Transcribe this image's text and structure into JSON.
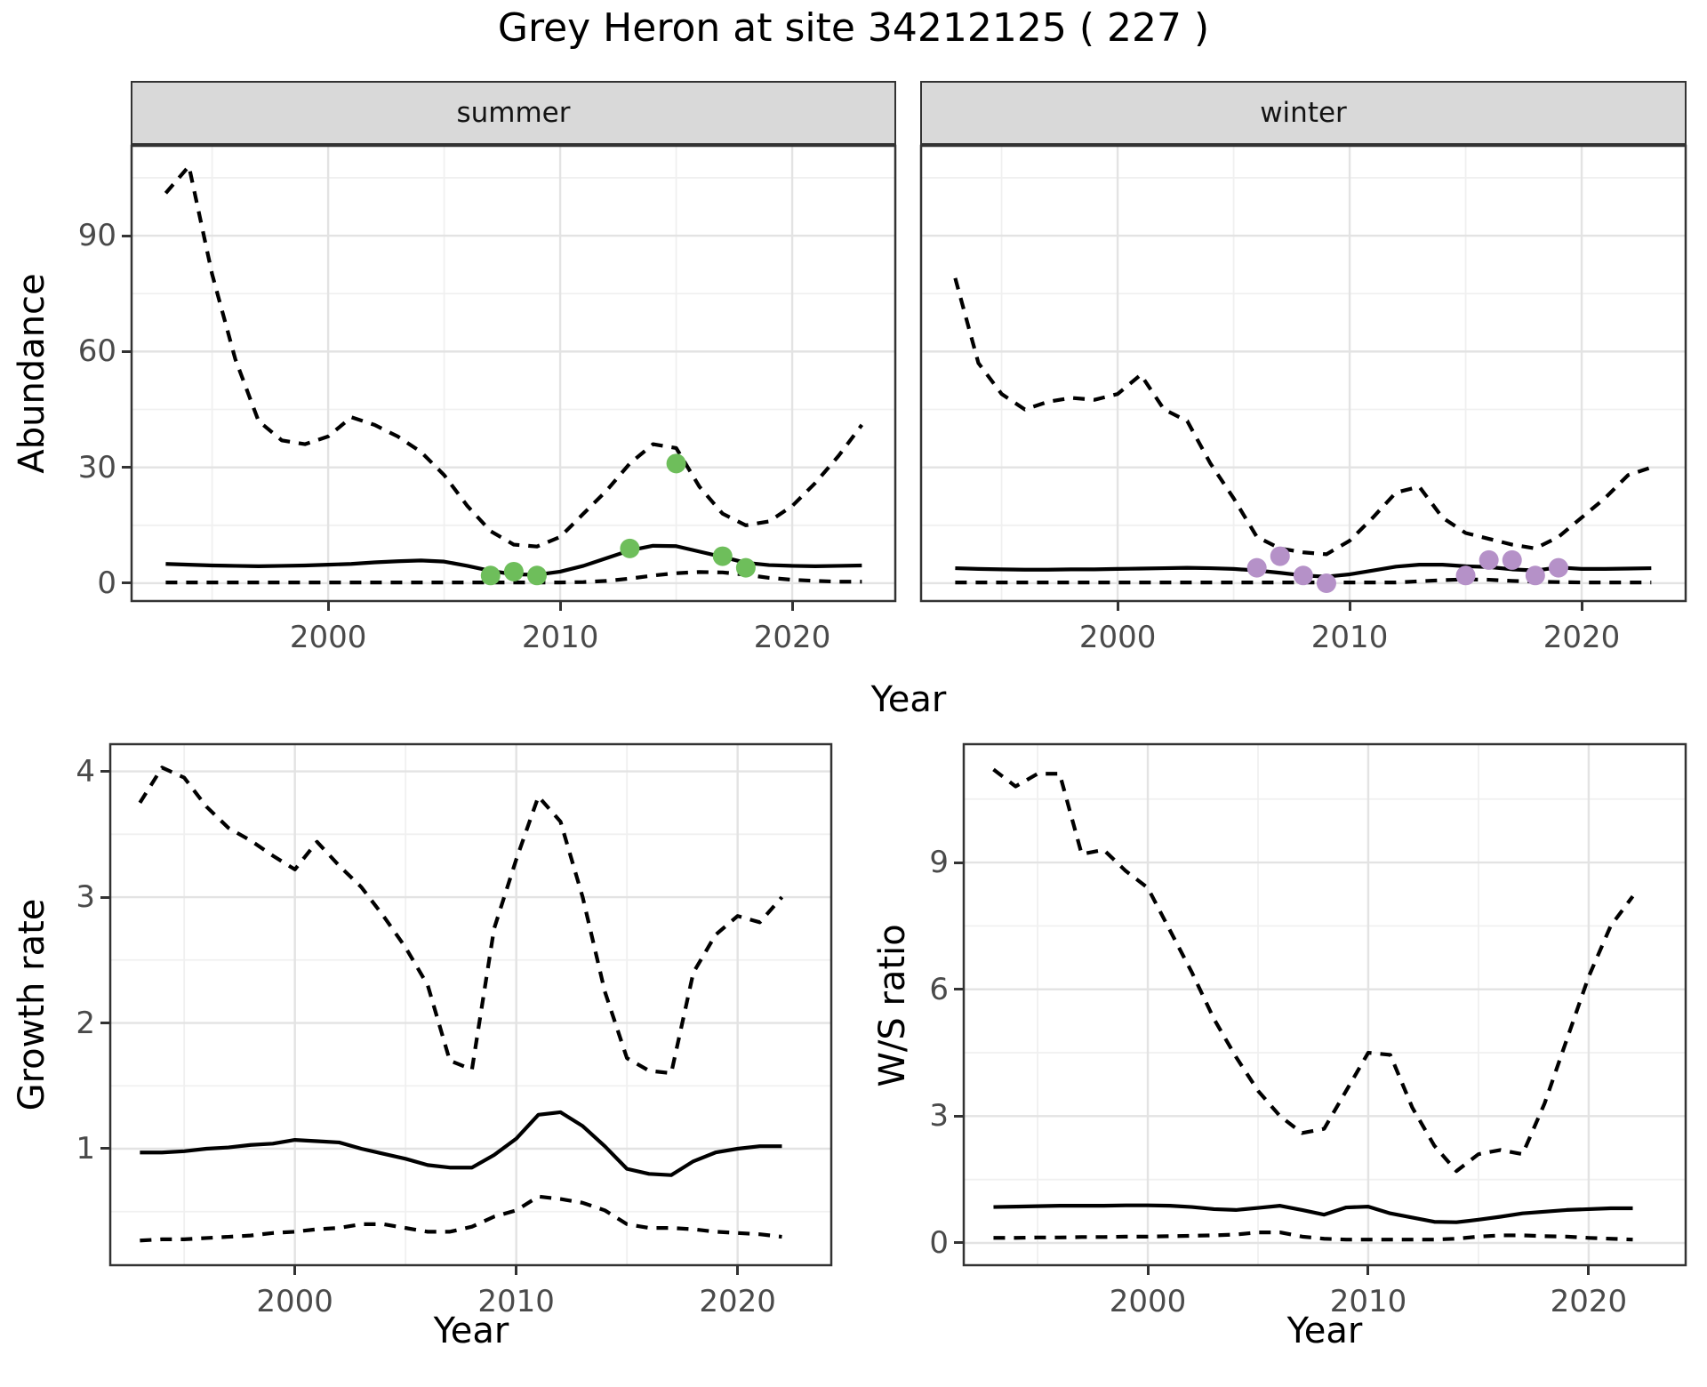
{
  "title": "Grey Heron at site 34212125 ( 227 )",
  "colors": {
    "summer_points": "#6ebe5b",
    "winter_points": "#b591c8",
    "line": "#000000",
    "strip_background": "#D9D9D9",
    "panel_border": "#333333",
    "grid_major": "#E3E3E3",
    "grid_minor": "#F0F0F0",
    "tick_text": "#4a4a4a"
  },
  "chart_data": [
    {
      "id": "summer-abundance",
      "type": "line",
      "facet_label": "summer",
      "xlabel": "Year",
      "ylabel": "Abundance",
      "xlim": [
        1991.49,
        2024.48
      ],
      "ylim": [
        -4.84,
        113.5
      ],
      "xticks": [
        2000,
        2010,
        2020
      ],
      "xtick_labels": [
        "2000",
        "2010",
        "2020"
      ],
      "yticks": [
        0,
        30,
        60,
        90
      ],
      "ytick_labels": [
        "0",
        "30",
        "60",
        "90"
      ],
      "xminor": [
        1995,
        2005,
        2015
      ],
      "yminor": [
        15,
        45,
        75,
        105
      ],
      "years": [
        1993,
        1994,
        1995,
        1996,
        1997,
        1998,
        1999,
        2000,
        2001,
        2002,
        2003,
        2004,
        2005,
        2006,
        2007,
        2008,
        2009,
        2010,
        2011,
        2012,
        2013,
        2014,
        2015,
        2016,
        2017,
        2018,
        2019,
        2020,
        2021,
        2022,
        2023
      ],
      "series": [
        {
          "name": "upper-95ci",
          "style": "dashed",
          "values": [
            101,
            108,
            80,
            58,
            42,
            37,
            36,
            38,
            43,
            41,
            38,
            34,
            28,
            20,
            13.5,
            10,
            9.5,
            12,
            18,
            24,
            31,
            36,
            35,
            25,
            18,
            15,
            16,
            20,
            26,
            33,
            41
          ]
        },
        {
          "name": "median",
          "style": "solid",
          "values": [
            5,
            4.8,
            4.6,
            4.5,
            4.4,
            4.5,
            4.6,
            4.8,
            5,
            5.4,
            5.7,
            5.9,
            5.6,
            4.5,
            3.2,
            2.3,
            2.2,
            3,
            4.5,
            6.5,
            8.5,
            9.7,
            9.6,
            8.2,
            6.8,
            5.3,
            4.7,
            4.5,
            4.4,
            4.5,
            4.6
          ]
        },
        {
          "name": "lower-95ci",
          "style": "dashed",
          "values": [
            0.2,
            0.2,
            0.2,
            0.2,
            0.2,
            0.2,
            0.2,
            0.2,
            0.2,
            0.2,
            0.2,
            0.2,
            0.2,
            0.2,
            0.2,
            0.2,
            0.2,
            0.2,
            0.3,
            0.6,
            1.2,
            2,
            2.6,
            2.9,
            2.8,
            2.2,
            1.4,
            0.9,
            0.6,
            0.4,
            0.4
          ]
        },
        {
          "name": "observed-counts",
          "style": "points",
          "color": "#6ebe5b",
          "x": [
            2007,
            2008,
            2009,
            2013,
            2015,
            2017,
            2018
          ],
          "y": [
            2,
            3,
            2,
            9,
            31,
            7,
            4
          ]
        }
      ]
    },
    {
      "id": "winter-abundance",
      "type": "line",
      "facet_label": "winter",
      "xlabel": "Year",
      "ylabel": "Abundance",
      "xlim": [
        1991.49,
        2024.52
      ],
      "ylim": [
        -4.84,
        113.5
      ],
      "xticks": [
        2000,
        2010,
        2020
      ],
      "xtick_labels": [
        "2000",
        "2010",
        "2020"
      ],
      "yticks": [
        0,
        30,
        60,
        90
      ],
      "ytick_labels": [
        "0",
        "30",
        "60",
        "90"
      ],
      "xminor": [
        1995,
        2005,
        2015
      ],
      "yminor": [
        15,
        45,
        75,
        105
      ],
      "years": [
        1993,
        1994,
        1995,
        1996,
        1997,
        1998,
        1999,
        2000,
        2001,
        2002,
        2003,
        2004,
        2005,
        2006,
        2007,
        2008,
        2009,
        2010,
        2011,
        2012,
        2013,
        2014,
        2015,
        2016,
        2017,
        2018,
        2019,
        2020,
        2021,
        2022,
        2023
      ],
      "series": [
        {
          "name": "upper-95ci",
          "style": "dashed",
          "values": [
            79,
            57,
            49,
            45,
            47,
            48,
            47.5,
            49,
            54,
            45,
            42,
            31,
            22,
            12,
            9,
            8,
            7.5,
            11,
            17,
            23.5,
            25,
            17,
            13,
            11.5,
            10,
            9,
            12,
            17,
            22,
            28,
            30
          ]
        },
        {
          "name": "median",
          "style": "solid",
          "values": [
            3.9,
            3.7,
            3.6,
            3.5,
            3.5,
            3.6,
            3.6,
            3.7,
            3.8,
            3.9,
            4,
            3.9,
            3.7,
            3.3,
            2.7,
            2,
            1.7,
            2.3,
            3.3,
            4.3,
            4.8,
            4.8,
            4.4,
            4.2,
            3.6,
            3.3,
            4.1,
            3.7,
            3.7,
            3.8,
            3.9
          ]
        },
        {
          "name": "lower-95ci",
          "style": "dashed",
          "values": [
            0.2,
            0.2,
            0.2,
            0.2,
            0.2,
            0.2,
            0.2,
            0.2,
            0.2,
            0.2,
            0.2,
            0.2,
            0.2,
            0.2,
            0.2,
            0.2,
            0.2,
            0.2,
            0.2,
            0.2,
            0.5,
            0.8,
            1,
            0.9,
            0.6,
            0.4,
            0.3,
            0.2,
            0.2,
            0.2,
            0.2
          ]
        },
        {
          "name": "observed-counts",
          "style": "points",
          "color": "#b591c8",
          "x": [
            2006,
            2007,
            2008,
            2009,
            2015,
            2016,
            2017,
            2018,
            2019
          ],
          "y": [
            4,
            7,
            2,
            0,
            2,
            6,
            6,
            2,
            4
          ]
        }
      ]
    },
    {
      "id": "growth-rate",
      "type": "line",
      "facet_label": null,
      "xlabel": "Year",
      "ylabel": "Growth rate",
      "xlim": [
        1991.62,
        2024.27
      ],
      "ylim": [
        0.067,
        4.223
      ],
      "xticks": [
        2000,
        2010,
        2020
      ],
      "xtick_labels": [
        "2000",
        "2010",
        "2020"
      ],
      "yticks": [
        1,
        2,
        3,
        4
      ],
      "ytick_labels": [
        "1",
        "2",
        "3",
        "4"
      ],
      "xminor": [
        1995,
        2005,
        2015
      ],
      "yminor": [
        0.5,
        1.5,
        2.5,
        3.5
      ],
      "years": [
        1993,
        1994,
        1995,
        1996,
        1997,
        1998,
        1999,
        2000,
        2001,
        2002,
        2003,
        2004,
        2005,
        2006,
        2007,
        2008,
        2009,
        2010,
        2011,
        2012,
        2013,
        2014,
        2015,
        2016,
        2017,
        2018,
        2019,
        2020,
        2021,
        2022
      ],
      "series": [
        {
          "name": "upper-95ci",
          "style": "dashed",
          "values": [
            3.75,
            4.03,
            3.95,
            3.72,
            3.55,
            3.45,
            3.33,
            3.22,
            3.44,
            3.25,
            3.08,
            2.85,
            2.6,
            2.3,
            1.7,
            1.63,
            2.75,
            3.3,
            3.8,
            3.6,
            3.0,
            2.25,
            1.72,
            1.62,
            1.6,
            2.4,
            2.7,
            2.85,
            2.8,
            3.0
          ]
        },
        {
          "name": "median",
          "style": "solid",
          "values": [
            0.97,
            0.97,
            0.98,
            1.0,
            1.01,
            1.03,
            1.04,
            1.07,
            1.06,
            1.05,
            1.0,
            0.96,
            0.92,
            0.87,
            0.85,
            0.85,
            0.95,
            1.08,
            1.27,
            1.29,
            1.18,
            1.02,
            0.84,
            0.8,
            0.79,
            0.9,
            0.97,
            1.0,
            1.02,
            1.02
          ]
        },
        {
          "name": "lower-95ci",
          "style": "dashed",
          "values": [
            0.27,
            0.28,
            0.28,
            0.29,
            0.3,
            0.31,
            0.33,
            0.34,
            0.36,
            0.37,
            0.4,
            0.4,
            0.37,
            0.34,
            0.34,
            0.38,
            0.46,
            0.51,
            0.62,
            0.6,
            0.57,
            0.51,
            0.4,
            0.37,
            0.37,
            0.36,
            0.34,
            0.33,
            0.32,
            0.3
          ]
        }
      ]
    },
    {
      "id": "ws-ratio",
      "type": "line",
      "facet_label": null,
      "xlabel": "Year",
      "ylabel": "W/S ratio",
      "xlim": [
        1991.61,
        2024.44
      ],
      "ylim": [
        -0.547,
        11.82
      ],
      "xticks": [
        2000,
        2010,
        2020
      ],
      "xtick_labels": [
        "2000",
        "2010",
        "2020"
      ],
      "yticks": [
        0,
        3,
        6,
        9
      ],
      "ytick_labels": [
        "0",
        "3",
        "6",
        "9"
      ],
      "xminor": [
        1995,
        2005,
        2015
      ],
      "yminor": [
        1.5,
        4.5,
        7.5,
        10.5
      ],
      "years": [
        1993,
        1994,
        1995,
        1996,
        1997,
        1998,
        1999,
        2000,
        2001,
        2002,
        2003,
        2004,
        2005,
        2006,
        2007,
        2008,
        2009,
        2010,
        2011,
        2012,
        2013,
        2014,
        2015,
        2016,
        2017,
        2018,
        2019,
        2020,
        2021,
        2022
      ],
      "series": [
        {
          "name": "upper-95ci",
          "style": "dashed",
          "values": [
            11.2,
            10.8,
            11.1,
            11.1,
            9.2,
            9.3,
            8.8,
            8.4,
            7.4,
            6.4,
            5.3,
            4.4,
            3.6,
            3.0,
            2.6,
            2.7,
            3.6,
            4.5,
            4.45,
            3.2,
            2.3,
            1.7,
            2.1,
            2.2,
            2.1,
            3.3,
            4.8,
            6.3,
            7.5,
            8.2
          ]
        },
        {
          "name": "median",
          "style": "solid",
          "values": [
            0.85,
            0.86,
            0.87,
            0.88,
            0.88,
            0.88,
            0.89,
            0.89,
            0.88,
            0.85,
            0.8,
            0.78,
            0.83,
            0.88,
            0.78,
            0.67,
            0.84,
            0.86,
            0.7,
            0.6,
            0.5,
            0.49,
            0.55,
            0.62,
            0.7,
            0.74,
            0.78,
            0.8,
            0.82,
            0.82
          ]
        },
        {
          "name": "lower-95ci",
          "style": "dashed",
          "values": [
            0.12,
            0.12,
            0.13,
            0.13,
            0.14,
            0.14,
            0.15,
            0.15,
            0.16,
            0.17,
            0.18,
            0.2,
            0.25,
            0.25,
            0.15,
            0.1,
            0.08,
            0.08,
            0.08,
            0.08,
            0.08,
            0.1,
            0.15,
            0.18,
            0.18,
            0.16,
            0.15,
            0.12,
            0.1,
            0.08
          ]
        }
      ]
    }
  ]
}
